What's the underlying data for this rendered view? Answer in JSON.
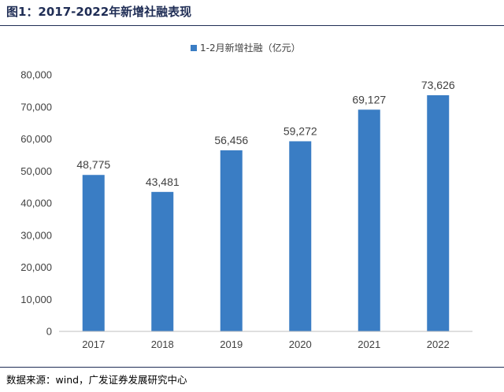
{
  "figure": {
    "title": "图1：2017-2022年新增社融表现",
    "source": "数据来源：wind，广发证券发展研究中心"
  },
  "colors": {
    "bar": "#3a7dc4",
    "rule": "#1f2d55",
    "axis": "#bfbfbf",
    "text": "#404040"
  },
  "chart_data": {
    "type": "bar",
    "title": "",
    "xlabel": "",
    "ylabel": "",
    "categories": [
      "2017",
      "2018",
      "2019",
      "2020",
      "2021",
      "2022"
    ],
    "series": [
      {
        "name": "1-2月新增社融（亿元）",
        "values": [
          48775,
          43481,
          56456,
          59272,
          69127,
          73626
        ]
      }
    ],
    "value_labels": [
      "48,775",
      "43,481",
      "56,456",
      "59,272",
      "69,127",
      "73,626"
    ],
    "ylim": [
      0,
      80000
    ],
    "y_ticks": [
      0,
      10000,
      20000,
      30000,
      40000,
      50000,
      60000,
      70000,
      80000
    ],
    "y_tick_labels": [
      "0",
      "10,000",
      "20,000",
      "30,000",
      "40,000",
      "50,000",
      "60,000",
      "70,000",
      "80,000"
    ],
    "grid": false,
    "legend_position": "top-center"
  }
}
